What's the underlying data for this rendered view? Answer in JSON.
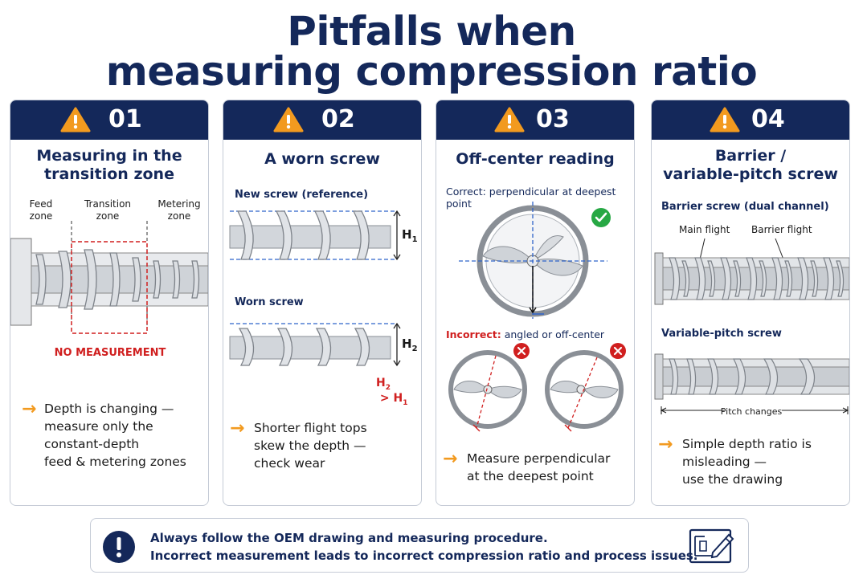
{
  "title": {
    "line1": "Pitfalls when",
    "line2": "measuring compression ratio"
  },
  "cards": [
    {
      "number": "01",
      "title_lines": [
        "Measuring in the",
        "transition zone"
      ],
      "zone_labels": [
        {
          "l1": "Feed",
          "l2": "zone"
        },
        {
          "l1": "Transition",
          "l2": "zone"
        },
        {
          "l1": "Metering",
          "l2": "zone"
        }
      ],
      "warning_label": "NO MEASUREMENT",
      "bullet_lines": [
        "Depth is changing —",
        "measure only the",
        "constant-depth",
        "feed & metering zones"
      ]
    },
    {
      "number": "02",
      "title_lines": [
        "A worn screw"
      ],
      "new_label": "New screw (reference)",
      "new_height_label": "H",
      "new_height_sub": "1",
      "worn_label": "Worn screw",
      "worn_height_label": "H",
      "worn_height_sub": "2",
      "comparison": {
        "a": "H",
        "a_sub": "2",
        "op": " > ",
        "b": "H",
        "b_sub": "1"
      },
      "bullet_lines": [
        "Shorter flight tops",
        "skew the depth —",
        "check wear"
      ]
    },
    {
      "number": "03",
      "title_lines": [
        "Off-center reading"
      ],
      "correct_label": "Correct: perpendicular at deepest point",
      "incorrect_prefix": "Incorrect:",
      "incorrect_rest": " angled or off-center",
      "bullet_lines": [
        "Measure perpendicular",
        "at the deepest point"
      ]
    },
    {
      "number": "04",
      "title_lines": [
        "Barrier /",
        "variable-pitch screw"
      ],
      "barrier_label": "Barrier screw (dual channel)",
      "main_flight_label": "Main flight",
      "barrier_flight_label": "Barrier flight",
      "variable_label": "Variable-pitch screw",
      "pitch_label": "Pitch changes",
      "bullet_lines": [
        "Simple depth ratio is",
        "misleading —",
        "use the drawing"
      ]
    }
  ],
  "footer": {
    "line1": "Always follow the OEM drawing and measuring procedure.",
    "line2": "Incorrect measurement leads to incorrect compression ratio and process issues."
  },
  "icons": {
    "warning": "warning-triangle-icon",
    "check": "check-circle-icon",
    "cross": "x-circle-icon",
    "exclamation": "exclamation-circle-icon",
    "drawing": "drawing-pencil-icon"
  },
  "colors": {
    "navy": "#14285a",
    "orange": "#f29a1f",
    "red": "#d01f1f",
    "green": "#27a844",
    "blue_dash": "#2f63c9"
  }
}
